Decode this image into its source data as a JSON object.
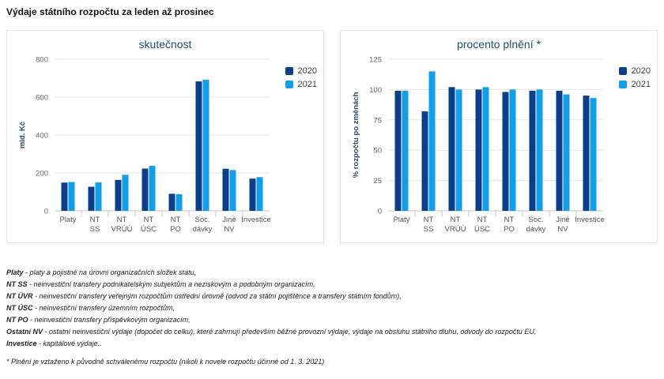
{
  "page": {
    "title": "Výdaje státního rozpočtu za leden až prosinec"
  },
  "colors": {
    "s2020": "#0b3f8c",
    "s2021": "#109fe8",
    "axis_text": "#666666",
    "grid": "#e6e6e6",
    "title": "#244f6b"
  },
  "chart_data": [
    {
      "type": "bar",
      "title": "skutečnost",
      "ylabel": "mld. Kč",
      "xlabel": "",
      "ylim": [
        0,
        800
      ],
      "yticks": [
        0,
        200,
        400,
        600,
        800
      ],
      "categories": [
        [
          "Platy"
        ],
        [
          "NT",
          "SS"
        ],
        [
          "NT",
          "VRÚÚ"
        ],
        [
          "NT",
          "ÚSC"
        ],
        [
          "NT",
          "PO"
        ],
        [
          "Soc.",
          "dávky"
        ],
        [
          "Jiné",
          "NV"
        ],
        [
          "Investice"
        ]
      ],
      "series": [
        {
          "name": "2020",
          "values": [
            149,
            127,
            163,
            223,
            90,
            683,
            222,
            170
          ]
        },
        {
          "name": "2021",
          "values": [
            152,
            150,
            190,
            237,
            88,
            692,
            215,
            178
          ]
        }
      ],
      "legend_position": "right"
    },
    {
      "type": "bar",
      "title": "procento plnění *",
      "ylabel": "% rozpočtu po změnách",
      "xlabel": "",
      "ylim": [
        0,
        125
      ],
      "yticks": [
        0,
        25,
        50,
        75,
        100,
        125
      ],
      "categories": [
        [
          "Platy"
        ],
        [
          "NT",
          "SS"
        ],
        [
          "NT",
          "VRÚÚ"
        ],
        [
          "NT",
          "ÚSC"
        ],
        [
          "NT",
          "PO"
        ],
        [
          "Soc.",
          "dávky"
        ],
        [
          "Jiné",
          "NV"
        ],
        [
          "Investice"
        ]
      ],
      "series": [
        {
          "name": "2020",
          "values": [
            99,
            82,
            102,
            100,
            98,
            99,
            99,
            95
          ]
        },
        {
          "name": "2021",
          "values": [
            99,
            115,
            100,
            102,
            100,
            100,
            96,
            93
          ]
        }
      ],
      "legend_position": "right"
    }
  ],
  "notes": [
    {
      "term": "Platy",
      "text": " - platy a pojistné na úrovni organizačních složek státu,"
    },
    {
      "term": "NT SS",
      "text": " - neinvestiční transfery podnikatelským subjektům a neziskovým a podobným organizacím,"
    },
    {
      "term": "NT ÚVR",
      "text": " - neinvestiční transfery veřejným rozpočtům ústřední úrovně (odvod za státní pojištěnce a transfery státním fondům),"
    },
    {
      "term": "NT ÚSC",
      "text": " - neinvestiční transfery územním rozpočtům,"
    },
    {
      "term": "NT PO",
      "text": " - neinvestiční transfery příspěvkovým organizacím,"
    },
    {
      "term": "Ostatní NV",
      "text": " - ostatní neinvestiční výdaje (dopočet do celku), které zahrnují především běžné provozní výdaje, výdaje na obsluhu státního dluhu, odvody do rozpočtu EU,"
    },
    {
      "term": "Investice",
      "text": " - kapitálové výdaje.."
    }
  ],
  "footnote": "* Plnění je vztaženo k původně schválenému rozpočtu (nikoli k novele rozpočtu účinné od 1. 3. 2021)"
}
